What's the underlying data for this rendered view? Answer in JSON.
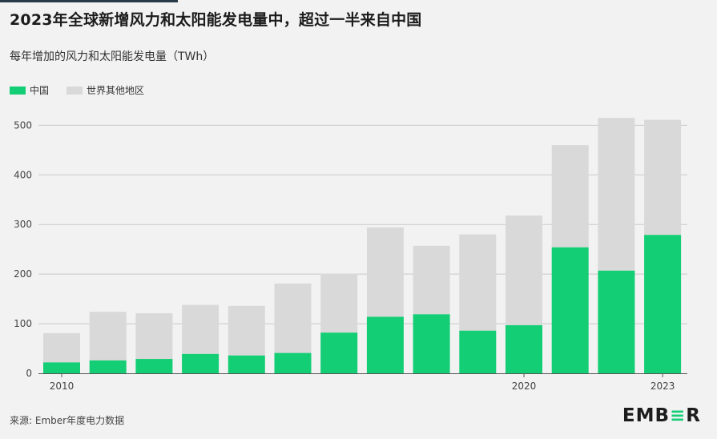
{
  "header": {
    "title": "2023年全球新增风力和太阳能发电量中，超过一半来自中国",
    "subtitle": "每年增加的风力和太阳能发电量（TWh）"
  },
  "legend": [
    {
      "label": "中国",
      "color": "#13ce74"
    },
    {
      "label": "世界其他地区",
      "color": "#d9d9d9"
    }
  ],
  "footer": {
    "source": "来源: Ember年度电力数据",
    "logo_pre": "EMB",
    "logo_accent": "≡",
    "logo_post": "R"
  },
  "chart_data": {
    "type": "bar",
    "stacked": true,
    "categories": [
      "2010",
      "2011",
      "2012",
      "2013",
      "2014",
      "2015",
      "2016",
      "2017",
      "2018",
      "2019",
      "2020",
      "2021",
      "2022",
      "2023"
    ],
    "x_tick_labels": [
      "2010",
      "2020",
      "2023"
    ],
    "series": [
      {
        "name": "中国",
        "color": "#13ce74",
        "values": [
          22,
          26,
          29,
          39,
          36,
          41,
          82,
          114,
          119,
          86,
          97,
          254,
          207,
          279
        ]
      },
      {
        "name": "世界其他地区",
        "color": "#d9d9d9",
        "values": [
          59,
          98,
          92,
          99,
          100,
          140,
          119,
          180,
          138,
          194,
          221,
          206,
          308,
          232
        ]
      }
    ],
    "totals": [
      81,
      124,
      121,
      138,
      136,
      181,
      201,
      294,
      257,
      280,
      318,
      460,
      515,
      511
    ],
    "ylim": [
      0,
      520
    ],
    "yticks": [
      0,
      100,
      200,
      300,
      400,
      500
    ],
    "grid": true,
    "legend_position": "top-left"
  }
}
